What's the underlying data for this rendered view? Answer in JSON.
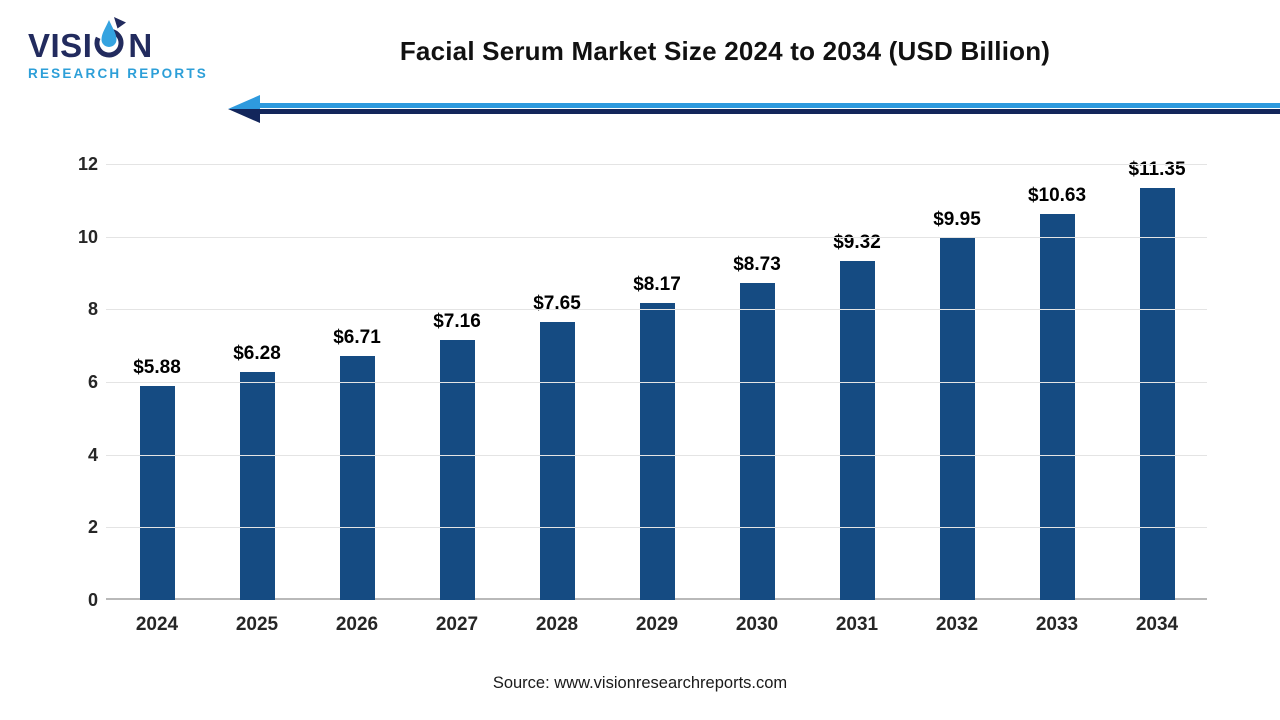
{
  "logo": {
    "brand_part1": "VISI",
    "brand_part2": "N",
    "brand_sub": "RESEARCH REPORTS"
  },
  "header": {
    "title": "Facial Serum Market Size 2024 to 2034 (USD Billion)"
  },
  "chart_data": {
    "type": "bar",
    "title": "Facial Serum Market Size 2024 to 2034 (USD Billion)",
    "categories": [
      "2024",
      "2025",
      "2026",
      "2027",
      "2028",
      "2029",
      "2030",
      "2031",
      "2032",
      "2033",
      "2034"
    ],
    "values": [
      5.88,
      6.28,
      6.71,
      7.16,
      7.65,
      8.17,
      8.73,
      9.32,
      9.95,
      10.63,
      11.35
    ],
    "value_labels": [
      "$5.88",
      "$6.28",
      "$6.71",
      "$7.16",
      "$7.65",
      "$8.17",
      "$8.73",
      "$9.32",
      "$9.95",
      "$10.63",
      "$11.35"
    ],
    "xlabel": "",
    "ylabel": "",
    "ylim": [
      0,
      12
    ],
    "yticks": [
      0,
      2,
      4,
      6,
      8,
      10,
      12
    ],
    "grid": true,
    "legend": "none",
    "bar_color": "#154b82",
    "unit": "USD Billion"
  },
  "footer": {
    "source": "Source: www.visionresearchreports.com"
  },
  "colors": {
    "bar": "#154b82",
    "logo_navy": "#222b5e",
    "logo_blue": "#2d9fd8",
    "arrow_light": "#2e9ade",
    "arrow_dark": "#13265b",
    "gridline": "#e4e4e4",
    "axis": "#b9b9b9",
    "text": "#262626"
  }
}
